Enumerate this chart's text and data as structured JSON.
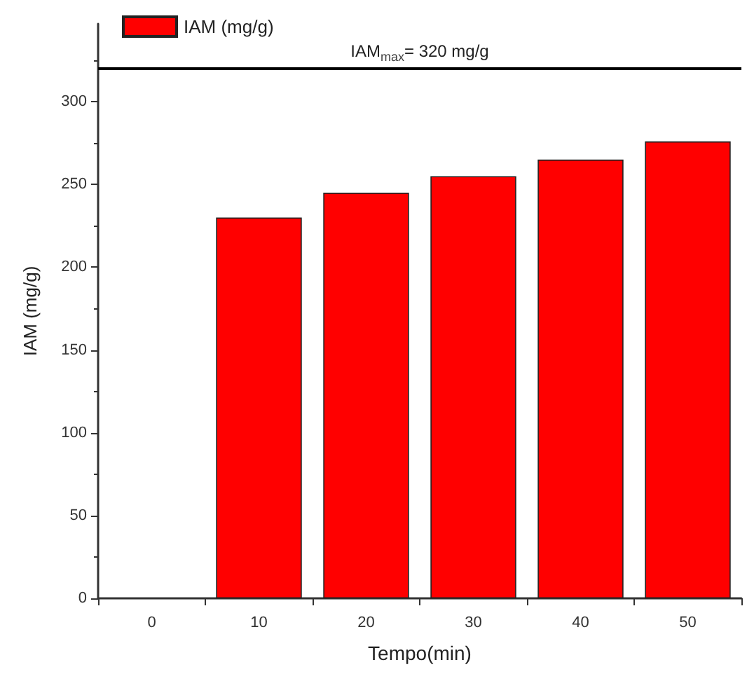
{
  "chart_data": {
    "type": "bar",
    "xlabel": "Tempo(min)",
    "ylabel": "IAM (mg/g)",
    "categories": [
      "0",
      "10",
      "20",
      "30",
      "40",
      "50"
    ],
    "series": [
      {
        "name": "IAM (mg/g)",
        "color": "#ff0000",
        "values": [
          null,
          230,
          245,
          255,
          265,
          276
        ]
      }
    ],
    "ylim": [
      0,
      347
    ],
    "yticks": [
      0,
      50,
      100,
      150,
      200,
      250,
      300
    ],
    "ref_lines": [
      {
        "axis": "y",
        "value": 320,
        "label": "IAM$_{max}$= 320 mg/g",
        "color": "#000000"
      }
    ],
    "legend": "top left",
    "grid": false
  }
}
